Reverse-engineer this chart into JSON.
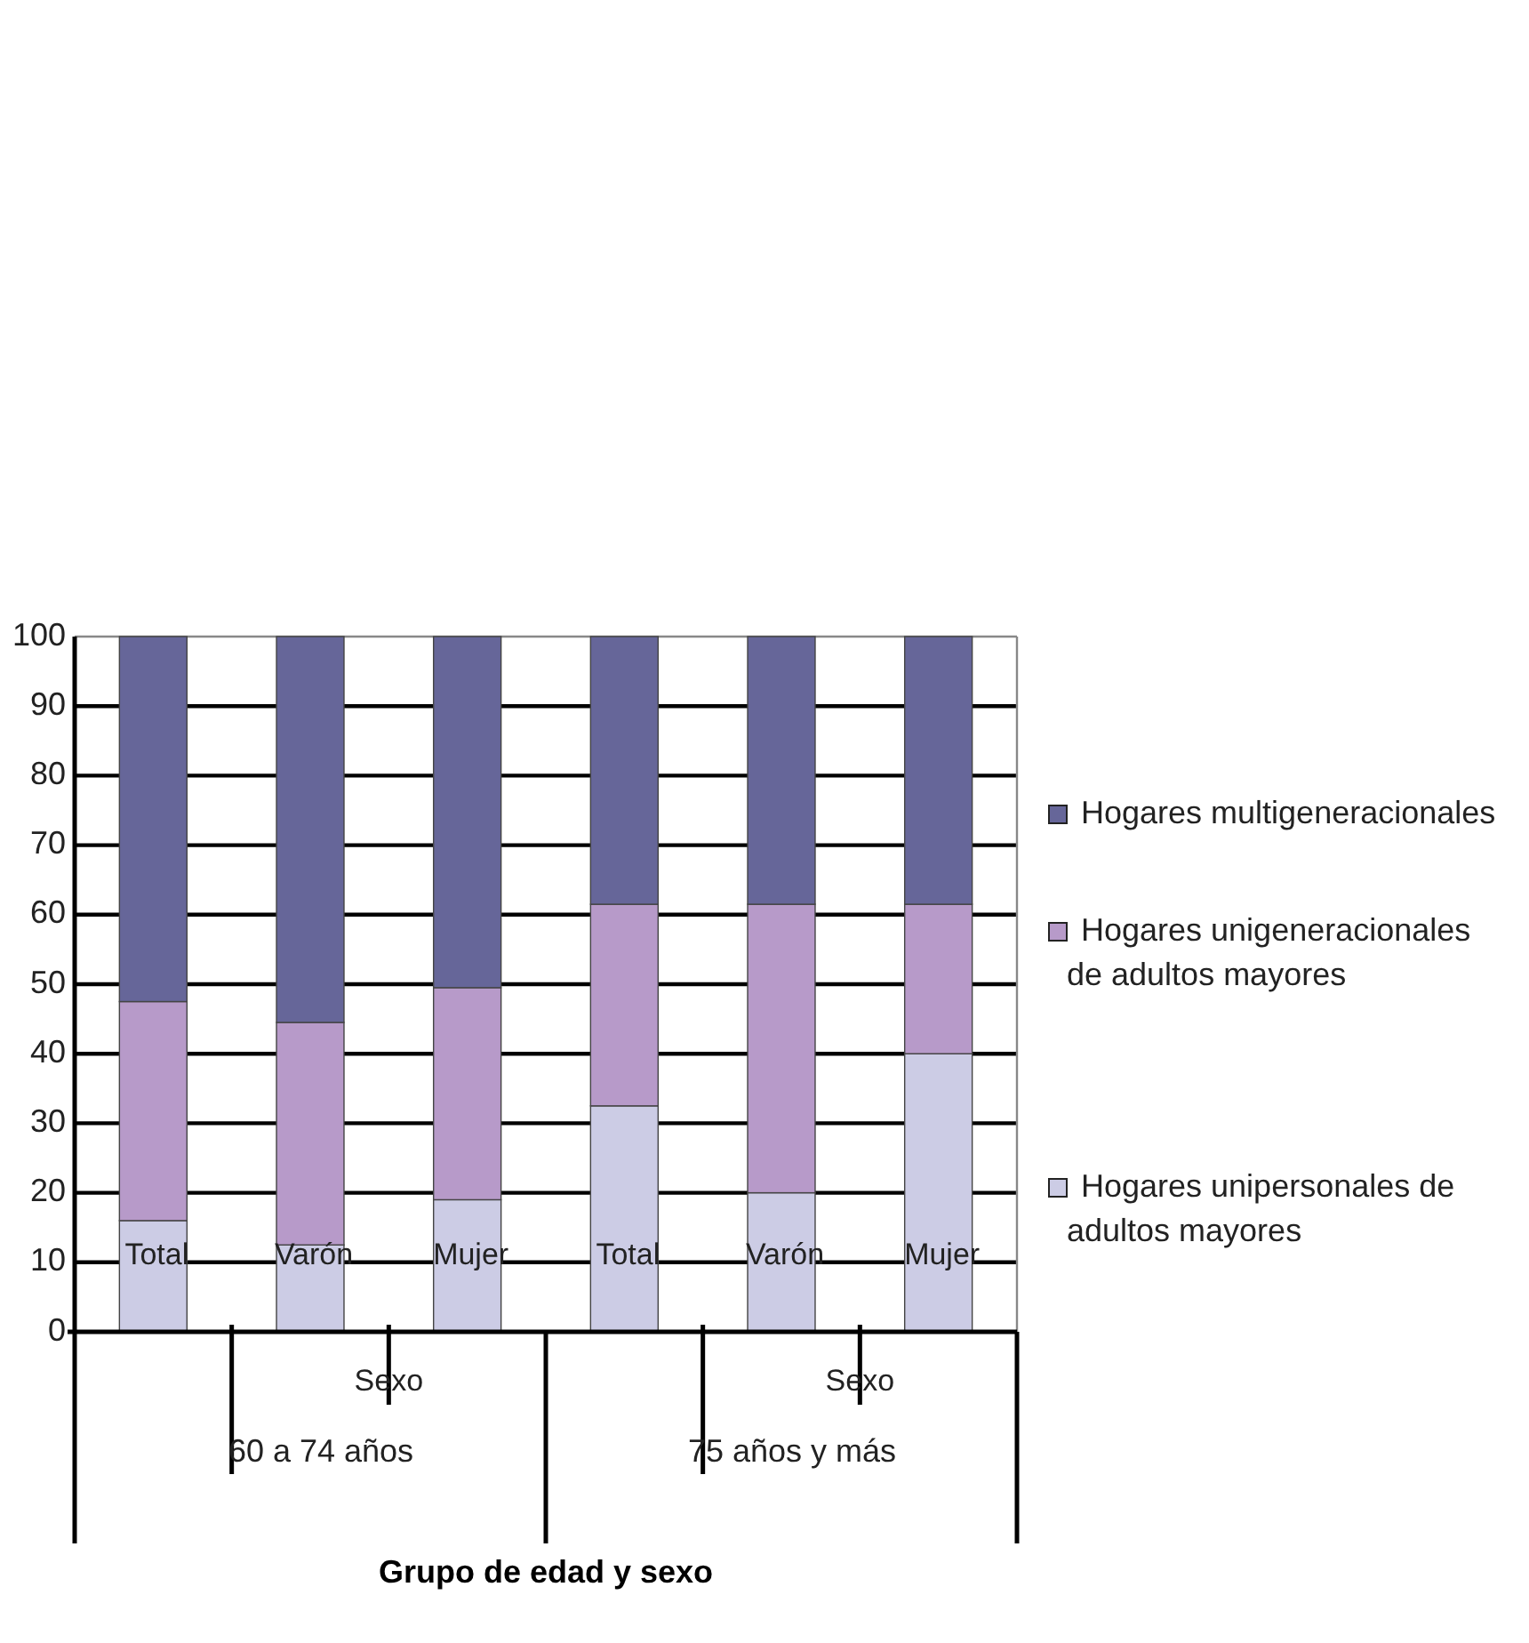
{
  "chart_data": {
    "type": "bar",
    "stacked": true,
    "categories": [
      "Total",
      "Varón",
      "Mujer",
      "Total",
      "Varón",
      "Mujer"
    ],
    "series": [
      {
        "name": "Hogares unipersonales de adultos mayores",
        "color": "#ccccE5",
        "values": [
          16,
          12.5,
          19,
          32.5,
          20,
          40
        ]
      },
      {
        "name": "Hogares unigeneracionales de adultos mayores",
        "color": "#b79ac9",
        "values": [
          31.5,
          32,
          30.5,
          29,
          41.5,
          21.5
        ]
      },
      {
        "name": "Hogares multigeneracionales",
        "color": "#666699",
        "values": [
          52.5,
          55.5,
          50.5,
          38.5,
          38.5,
          38.5
        ]
      }
    ],
    "ylim": [
      0,
      100
    ],
    "yticks": [
      0,
      10,
      20,
      30,
      40,
      50,
      60,
      70,
      80,
      90,
      100
    ],
    "grid": "y",
    "legend": "right",
    "annotations": [
      "Sexo",
      "Sexo",
      "60 a 74 años",
      "75 años y más",
      "Grupo de edad y sexo"
    ]
  }
}
